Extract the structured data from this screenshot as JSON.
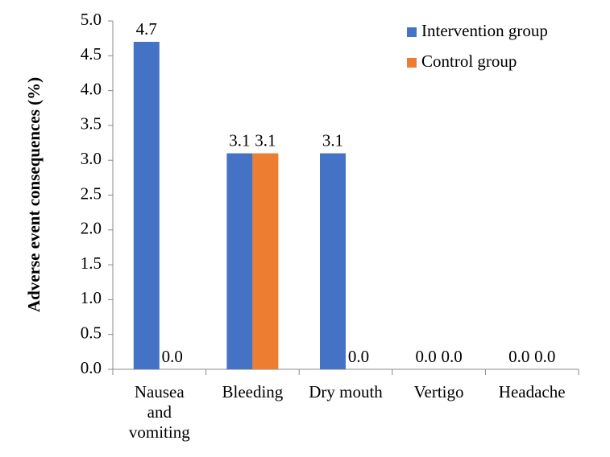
{
  "chart_data": {
    "type": "bar",
    "y_label": "Adverse event consequences (%)",
    "categories": [
      "Nausea and vomiting",
      "Bleeding",
      "Dry mouth",
      "Vertigo",
      "Headache"
    ],
    "series": [
      {
        "name": "Intervention group",
        "color": "#4472c4",
        "values": [
          4.7,
          3.1,
          3.1,
          0,
          0
        ],
        "value_labels": [
          "4.7",
          "3.1",
          "3.1",
          "0.0",
          "0.0"
        ]
      },
      {
        "name": "Control group",
        "color": "#ed7d31",
        "values": [
          0,
          3.1,
          0,
          0,
          0
        ],
        "value_labels": [
          "0.0",
          "3.1",
          "0.0",
          "0.0",
          "0.0"
        ]
      }
    ],
    "ylim": [
      0,
      5
    ],
    "yticks": [
      {
        "value": 0,
        "label": "0.0"
      },
      0.5,
      {
        "value": 1,
        "label": "1.0"
      },
      1.5,
      {
        "value": 2,
        "label": "2.0"
      },
      2.5,
      {
        "value": 3,
        "label": "3.0"
      },
      3.5,
      {
        "value": 4,
        "label": "4.0"
      },
      4.5,
      {
        "value": 5,
        "label": "5.0"
      }
    ],
    "grid": false,
    "legend": "top-right"
  }
}
